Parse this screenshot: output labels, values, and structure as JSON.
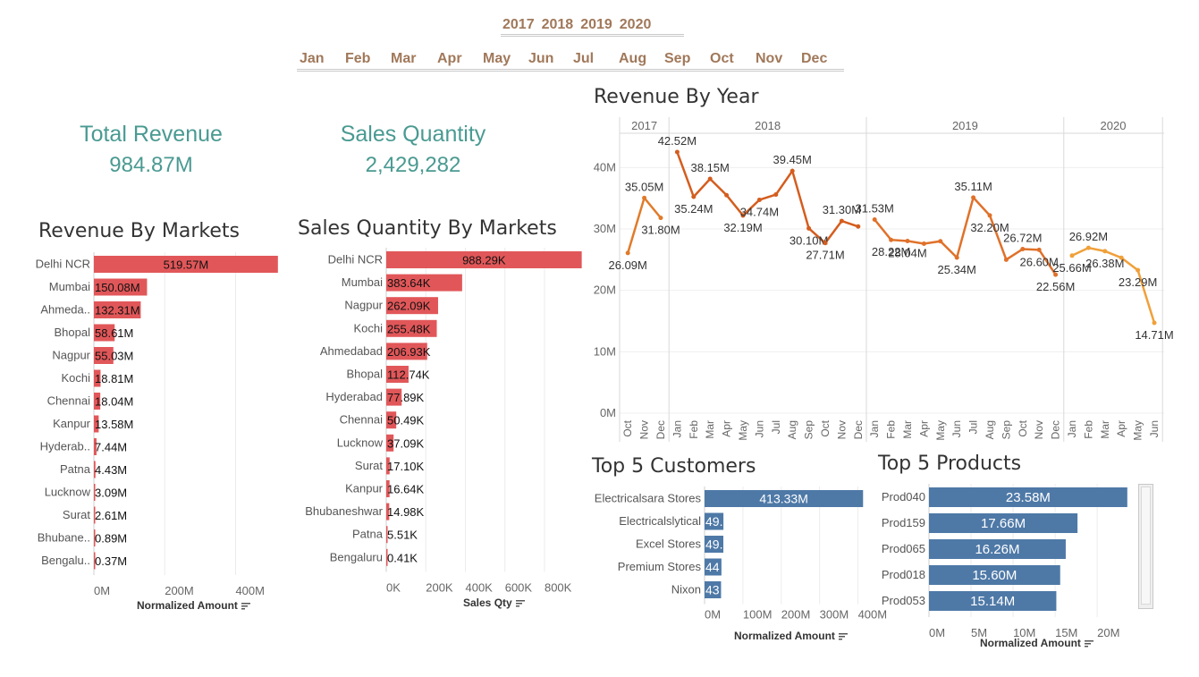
{
  "filters": {
    "years": [
      "2017",
      "2018",
      "2019",
      "2020"
    ],
    "months": [
      "Jan",
      "Feb",
      "Mar",
      "Apr",
      "May",
      "Jun",
      "Jul",
      "Aug",
      "Sep",
      "Oct",
      "Nov",
      "Dec"
    ]
  },
  "kpis": {
    "revenue_title": "Total Revenue",
    "revenue_value": "984.87M",
    "qty_title": "Sales Quantity",
    "qty_value": "2,429,282"
  },
  "titles": {
    "rev_markets": "Revenue By Markets",
    "qty_markets": "Sales Quantity By Markets",
    "rev_year": "Revenue By Year",
    "customers": "Top 5 Customers",
    "products": "Top 5 Products"
  },
  "colors": {
    "red_bar": "#e15759",
    "blue_bar": "#4e79a7",
    "teal": "#4a9a92",
    "filter": "#a0785a"
  },
  "chart_data": [
    {
      "id": "rev_markets",
      "type": "bar",
      "orientation": "horizontal",
      "title": "Revenue By Markets",
      "xlabel": "Normalized Amount",
      "categories": [
        "Delhi NCR",
        "Mumbai",
        "Ahmeda..",
        "Bhopal",
        "Nagpur",
        "Kochi",
        "Chennai",
        "Kanpur",
        "Hyderab..",
        "Patna",
        "Lucknow",
        "Surat",
        "Bhubane..",
        "Bengalu.."
      ],
      "values": [
        519.57,
        150.08,
        132.31,
        58.61,
        55.03,
        18.81,
        18.04,
        13.58,
        7.44,
        4.43,
        3.09,
        2.61,
        0.89,
        0.37
      ],
      "labels": [
        "519.57M",
        "150.08M",
        "132.31M",
        "58.61M",
        "55.03M",
        "18.81M",
        "18.04M",
        "13.58M",
        "7.44M",
        "4.43M",
        "3.09M",
        "2.61M",
        "0.89M",
        "0.37M"
      ],
      "xlim": [
        0,
        520
      ],
      "ticks": [
        0,
        200,
        400
      ],
      "tick_labels": [
        "0M",
        "200M",
        "400M"
      ],
      "color": "#e15759"
    },
    {
      "id": "qty_markets",
      "type": "bar",
      "orientation": "horizontal",
      "title": "Sales Quantity By Markets",
      "xlabel": "Sales Qty",
      "categories": [
        "Delhi NCR",
        "Mumbai",
        "Nagpur",
        "Kochi",
        "Ahmedabad",
        "Bhopal",
        "Hyderabad",
        "Chennai",
        "Lucknow",
        "Surat",
        "Kanpur",
        "Bhubaneshwar",
        "Patna",
        "Bengaluru"
      ],
      "values": [
        988.29,
        383.64,
        262.09,
        255.48,
        206.93,
        112.74,
        77.89,
        50.49,
        37.09,
        17.1,
        16.64,
        14.98,
        5.51,
        0.41
      ],
      "labels": [
        "988.29K",
        "383.64K",
        "262.09K",
        "255.48K",
        "206.93K",
        "112.74K",
        "77.89K",
        "50.49K",
        "37.09K",
        "17.10K",
        "16.64K",
        "14.98K",
        "5.51K",
        "0.41K"
      ],
      "xlim": [
        0,
        990
      ],
      "ticks": [
        0,
        200,
        400,
        600,
        800
      ],
      "tick_labels": [
        "0K",
        "200K",
        "400K",
        "600K",
        "800K"
      ],
      "color": "#e15759"
    },
    {
      "id": "rev_year",
      "type": "line",
      "title": "Revenue By Year",
      "ylim": [
        0,
        45
      ],
      "yticks": [
        0,
        10,
        20,
        30,
        40
      ],
      "ytick_labels": [
        "0M",
        "10M",
        "20M",
        "30M",
        "40M"
      ],
      "panels": [
        {
          "year": "2017",
          "months": [
            "Oct",
            "Nov",
            "Dec"
          ],
          "values": [
            26.09,
            35.05,
            31.8
          ],
          "labels": [
            "26.09M",
            "35.05M",
            "31.80M"
          ],
          "color": "#e07b2a"
        },
        {
          "year": "2018",
          "months": [
            "Jan",
            "Feb",
            "Mar",
            "Apr",
            "May",
            "Jun",
            "Jul",
            "Aug",
            "Sep",
            "Oct",
            "Nov",
            "Dec"
          ],
          "values": [
            42.52,
            35.24,
            38.15,
            35.5,
            32.19,
            34.74,
            35.6,
            39.45,
            30.1,
            27.71,
            31.3,
            30.4
          ],
          "labels": [
            "42.52M",
            "35.24M",
            "38.15M",
            "",
            "32.19M",
            "34.74M",
            "",
            "39.45M",
            "30.10M",
            "27.71M",
            "31.30M",
            ""
          ],
          "color": "#d45d1e"
        },
        {
          "year": "2019",
          "months": [
            "Jan",
            "Feb",
            "Mar",
            "Apr",
            "May",
            "Jun",
            "Jul",
            "Aug",
            "Sep",
            "Oct",
            "Nov",
            "Dec"
          ],
          "values": [
            31.53,
            28.22,
            28.04,
            27.6,
            28.0,
            25.34,
            35.11,
            32.2,
            25.0,
            26.72,
            26.6,
            22.56
          ],
          "labels": [
            "31.53M",
            "28.22M",
            "28.04M",
            "",
            "",
            "25.34M",
            "35.11M",
            "32.20M",
            "",
            "26.72M",
            "26.60M",
            "22.56M"
          ],
          "color": "#e0712a"
        },
        {
          "year": "2020",
          "months": [
            "Jan",
            "Feb",
            "Mar",
            "Apr",
            "May",
            "Jun"
          ],
          "values": [
            25.66,
            26.92,
            26.38,
            25.3,
            23.29,
            14.71
          ],
          "labels": [
            "25.66M",
            "26.92M",
            "26.38M",
            "",
            "23.29M",
            "14.71M"
          ],
          "color": "#f0a03a"
        }
      ]
    },
    {
      "id": "customers",
      "type": "bar",
      "orientation": "horizontal",
      "title": "Top 5 Customers",
      "xlabel": "Normalized Amount",
      "categories": [
        "Electricalsara Stores",
        "Electricalslytical",
        "Excel Stores",
        "Premium Stores",
        "Nixon"
      ],
      "values": [
        413.33,
        49.2,
        49.0,
        44.0,
        43.0
      ],
      "labels": [
        "413.33M",
        "49.",
        "49.",
        "44",
        "43"
      ],
      "xlim": [
        0,
        415
      ],
      "ticks": [
        0,
        100,
        200,
        300,
        400
      ],
      "tick_labels": [
        "0M",
        "100M",
        "200M",
        "300M",
        "400M"
      ],
      "color": "#4e79a7"
    },
    {
      "id": "products",
      "type": "bar",
      "orientation": "horizontal",
      "title": "Top 5 Products",
      "xlabel": "Normalized Amount",
      "categories": [
        "Prod040",
        "Prod159",
        "Prod065",
        "Prod018",
        "Prod053"
      ],
      "values": [
        23.58,
        17.66,
        16.26,
        15.6,
        15.14
      ],
      "labels": [
        "23.58M",
        "17.66M",
        "16.26M",
        "15.60M",
        "15.14M"
      ],
      "xlim": [
        0,
        23.6
      ],
      "ticks": [
        0,
        5,
        10,
        15,
        20
      ],
      "tick_labels": [
        "0M",
        "5M",
        "10M",
        "15M",
        "20M"
      ],
      "color": "#4e79a7"
    }
  ]
}
